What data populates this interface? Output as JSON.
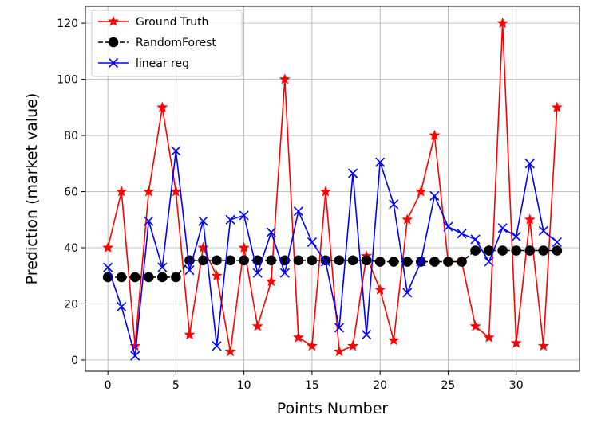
{
  "chart_data": {
    "type": "line",
    "xlabel": "Points Number",
    "ylabel": "Prediction (market value)",
    "xlim": [
      -1.65,
      34.65
    ],
    "ylim": [
      -4,
      126
    ],
    "xticks": [
      0,
      5,
      10,
      15,
      20,
      25,
      30
    ],
    "yticks": [
      0,
      20,
      40,
      60,
      80,
      100,
      120
    ],
    "grid": true,
    "legend_position": "top-left",
    "x": [
      0,
      1,
      2,
      3,
      4,
      5,
      6,
      7,
      8,
      9,
      10,
      11,
      12,
      13,
      14,
      15,
      16,
      17,
      18,
      19,
      20,
      21,
      22,
      23,
      24,
      25,
      26,
      27,
      28,
      29,
      30,
      31,
      32,
      33
    ],
    "series": [
      {
        "name": "Ground Truth",
        "color": "#ff0000",
        "marker": "star",
        "linestyle": "solid",
        "values": [
          40,
          60,
          5,
          60,
          90,
          60,
          9,
          40,
          30,
          3,
          40,
          12,
          28,
          100,
          8,
          5,
          60,
          3,
          5,
          37,
          25,
          7,
          50,
          60,
          80,
          35,
          35,
          12,
          8,
          120,
          6,
          50,
          5,
          90
        ]
      },
      {
        "name": "RandomForest",
        "color": "#000000",
        "marker": "circle",
        "linestyle": "dashed",
        "values": [
          29.5,
          29.5,
          29.5,
          29.5,
          29.5,
          29.5,
          35.5,
          35.5,
          35.5,
          35.5,
          35.5,
          35.5,
          35.5,
          35.5,
          35.5,
          35.5,
          35.5,
          35.5,
          35.5,
          35.5,
          35,
          35,
          35,
          35,
          35,
          35,
          35,
          39,
          39,
          39,
          39,
          39,
          39,
          39
        ]
      },
      {
        "name": "linear reg",
        "color": "#0000ff",
        "marker": "x",
        "linestyle": "solid",
        "values": [
          33,
          19,
          1.5,
          49.5,
          33,
          74.5,
          32,
          49.5,
          5,
          50,
          51.5,
          31,
          45.5,
          31,
          53,
          42,
          35,
          11.5,
          66.5,
          9,
          70.5,
          55.5,
          24,
          35,
          58.5,
          47.5,
          45,
          43,
          35,
          47,
          44,
          70,
          46,
          42
        ]
      }
    ]
  }
}
